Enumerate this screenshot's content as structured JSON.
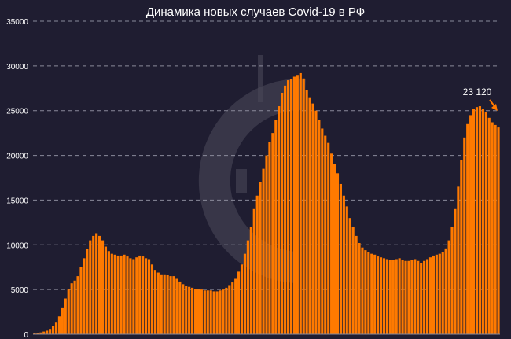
{
  "chart_data": {
    "type": "bar",
    "title": "Динамика новых случаев Covid-19 в РФ",
    "xlabel": "",
    "ylabel": "",
    "ylim": [
      0,
      35000
    ],
    "yticks": [
      0,
      5000,
      10000,
      15000,
      20000,
      25000,
      30000,
      35000
    ],
    "grid": true,
    "legend": "none",
    "annotation": {
      "text": "23 120",
      "value": 23120
    },
    "colors": {
      "bars": "#ff7a00",
      "background": "#1f1d31",
      "grid": "#8a8a9a",
      "text": "#ffffff",
      "watermark": "#4a4858"
    },
    "watermark_icon": "logo-watermark-icon",
    "series": [
      {
        "values": [
          100,
          150,
          200,
          300,
          400,
          600,
          900,
          1300,
          2000,
          3000,
          4000,
          5000,
          5700,
          6000,
          6500,
          7500,
          8500,
          9500,
          10500,
          11000,
          11300,
          11000,
          10500,
          9800,
          9300,
          9000,
          8900,
          8800,
          8800,
          8900,
          8700,
          8500,
          8400,
          8600,
          8800,
          8700,
          8500,
          8400,
          7800,
          7200,
          6900,
          6700,
          6700,
          6600,
          6500,
          6500,
          6200,
          5900,
          5600,
          5400,
          5300,
          5200,
          5100,
          5000,
          5000,
          4900,
          4900,
          4900,
          4800,
          4800,
          4900,
          5000,
          5200,
          5500,
          5800,
          6200,
          7000,
          7800,
          9000,
          10500,
          12000,
          14000,
          15500,
          17000,
          18500,
          20000,
          21500,
          22500,
          24000,
          25500,
          27000,
          27800,
          28400,
          28500,
          28800,
          29000,
          29200,
          28600,
          27300,
          26500,
          25800,
          25000,
          24000,
          23000,
          22200,
          21400,
          20200,
          19000,
          18000,
          16800,
          15500,
          14300,
          13000,
          12000,
          11000,
          10200,
          9700,
          9400,
          9200,
          9000,
          8900,
          8700,
          8600,
          8500,
          8400,
          8300,
          8300,
          8400,
          8500,
          8300,
          8200,
          8200,
          8300,
          8400,
          8200,
          8000,
          8200,
          8400,
          8600,
          8800,
          8900,
          9000,
          9200,
          9600,
          10500,
          12000,
          14000,
          16500,
          19500,
          22000,
          23500,
          24500,
          25200,
          25400,
          25500,
          25200,
          24800,
          24200,
          23700,
          23400,
          23120
        ]
      }
    ]
  }
}
